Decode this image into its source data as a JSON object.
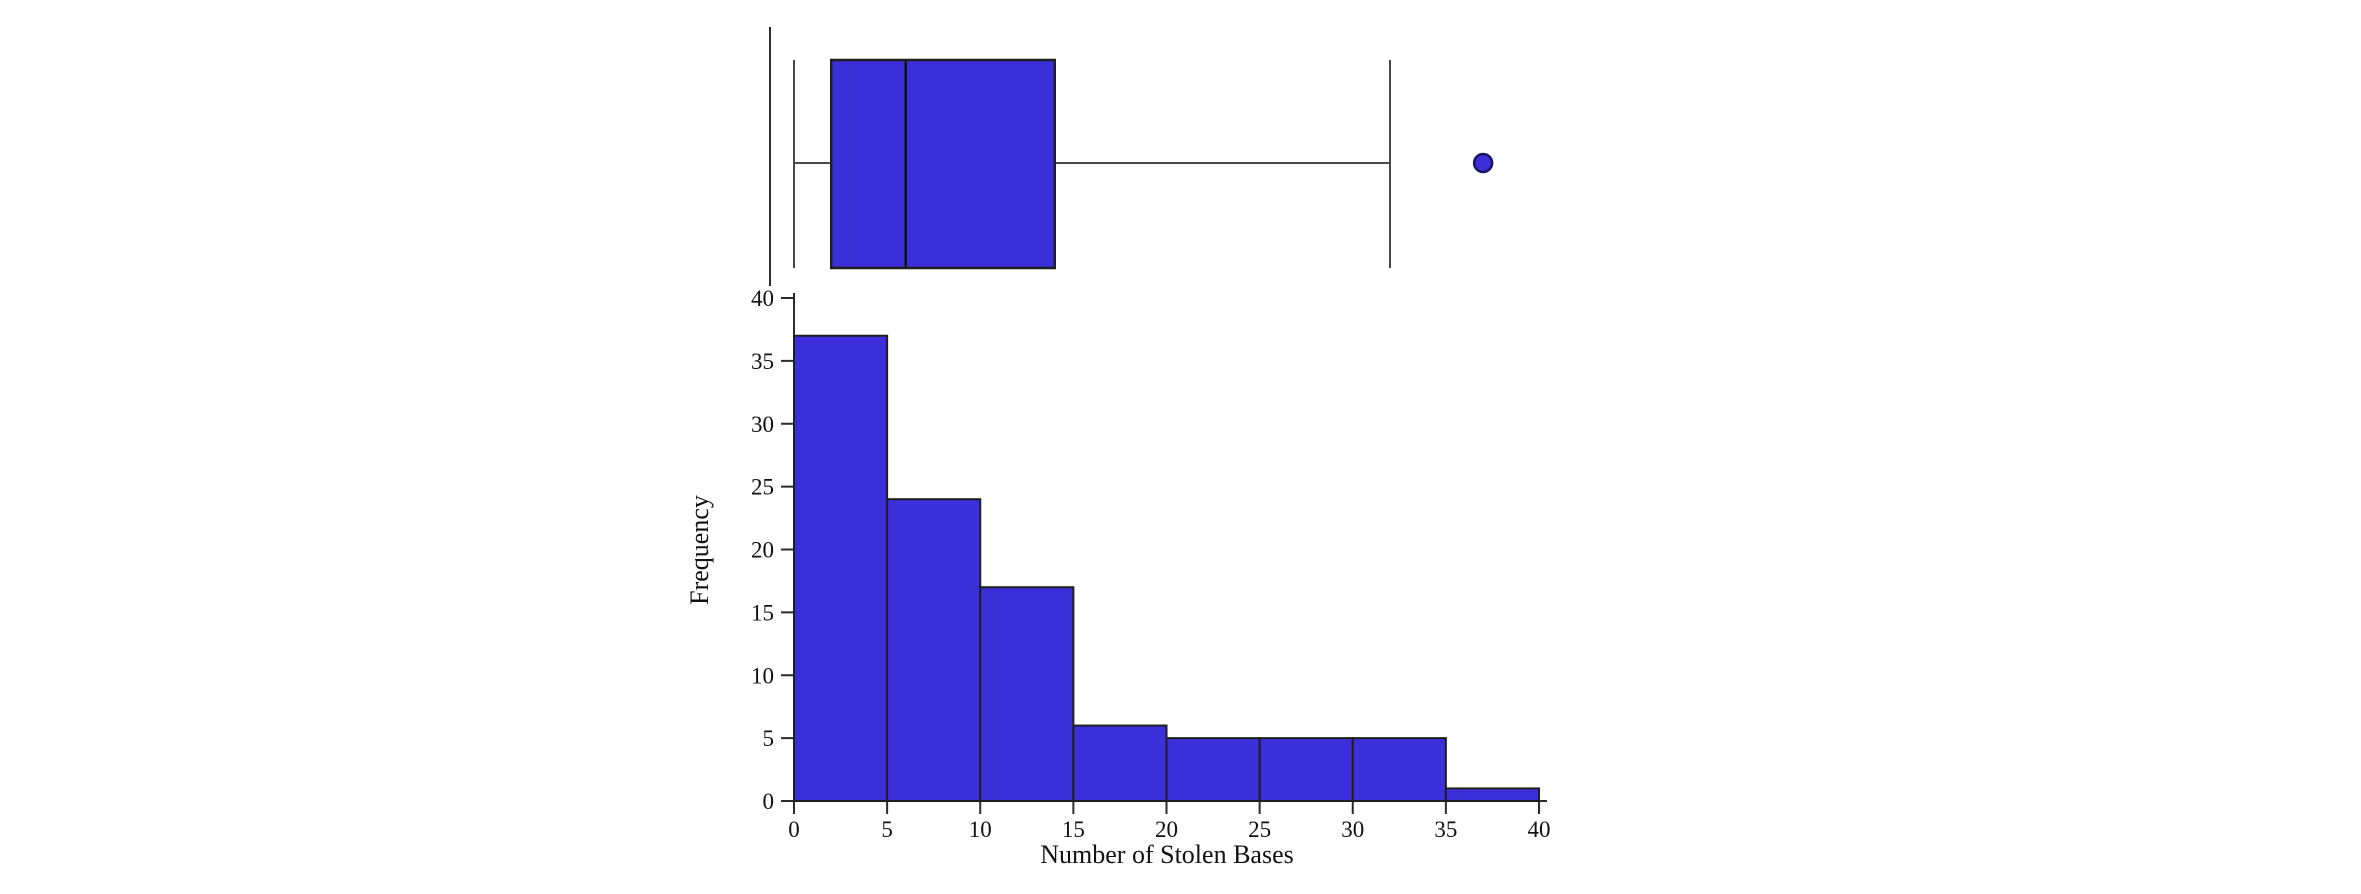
{
  "page": {
    "background": "#ffffff"
  },
  "chart_data": {
    "type": "histogram",
    "subtype": "histogram-with-boxplot-above",
    "title": "",
    "xlabel": "Number of Stolen Bases",
    "ylabel": "Frequency",
    "xlim": [
      0,
      40
    ],
    "ylim": [
      0,
      40
    ],
    "x_ticks": [
      0,
      5,
      10,
      15,
      20,
      25,
      30,
      35,
      40
    ],
    "y_ticks": [
      0,
      5,
      10,
      15,
      20,
      25,
      30,
      35,
      40
    ],
    "grid": false,
    "legend": "none",
    "colors": {
      "fill": "#3b2fd9",
      "edge": "#1f1f1f",
      "axis": "#2b2b2b",
      "whisker": "#4a4a4a",
      "median": "#111111",
      "outlier_fill": "#3b2fd9",
      "outlier_edge": "#1b1464",
      "text": "#111111"
    },
    "histogram": {
      "bin_width": 5,
      "bin_edges": [
        0,
        5,
        10,
        15,
        20,
        25,
        30,
        35,
        40
      ],
      "frequencies": [
        37,
        24,
        17,
        6,
        5,
        5,
        5,
        1
      ]
    },
    "boxplot": {
      "whisker_low": 0,
      "q1": 2,
      "median": 6,
      "q3": 14,
      "whisker_high": 32,
      "outliers": [
        37
      ]
    }
  }
}
